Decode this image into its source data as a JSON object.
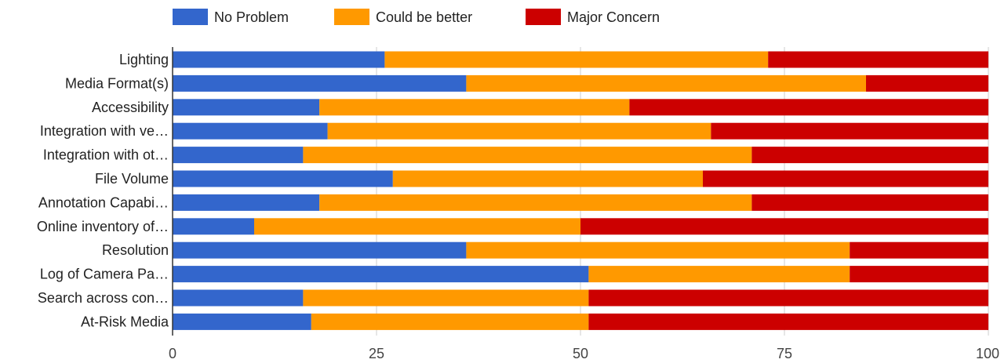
{
  "chart_data": {
    "type": "bar",
    "orientation": "horizontal",
    "stacked": true,
    "legend_position": "top",
    "grid": true,
    "xlim": [
      0,
      100
    ],
    "x_ticks": [
      "0",
      "25",
      "50",
      "75",
      "100"
    ],
    "categories": [
      "Lighting",
      "Media Format(s)",
      "Accessibility",
      "Integration with ve…",
      "Integration with ot…",
      "File Volume",
      "Annotation Capabi…",
      "Online inventory of…",
      "Resolution",
      "Log of Camera Pa…",
      "Search across con…",
      "At-Risk Media"
    ],
    "series": [
      {
        "name": "No Problem",
        "color": "#3366cc",
        "values": [
          26,
          36,
          18,
          19,
          16,
          27,
          18,
          10,
          36,
          51,
          16,
          17
        ]
      },
      {
        "name": "Could be better",
        "color": "#ff9900",
        "values": [
          47,
          49,
          38,
          47,
          55,
          38,
          53,
          40,
          47,
          32,
          35,
          34
        ]
      },
      {
        "name": "Major Concern",
        "color": "#cc0000",
        "values": [
          27,
          15,
          44,
          34,
          29,
          35,
          29,
          50,
          17,
          17,
          49,
          49
        ]
      }
    ]
  }
}
